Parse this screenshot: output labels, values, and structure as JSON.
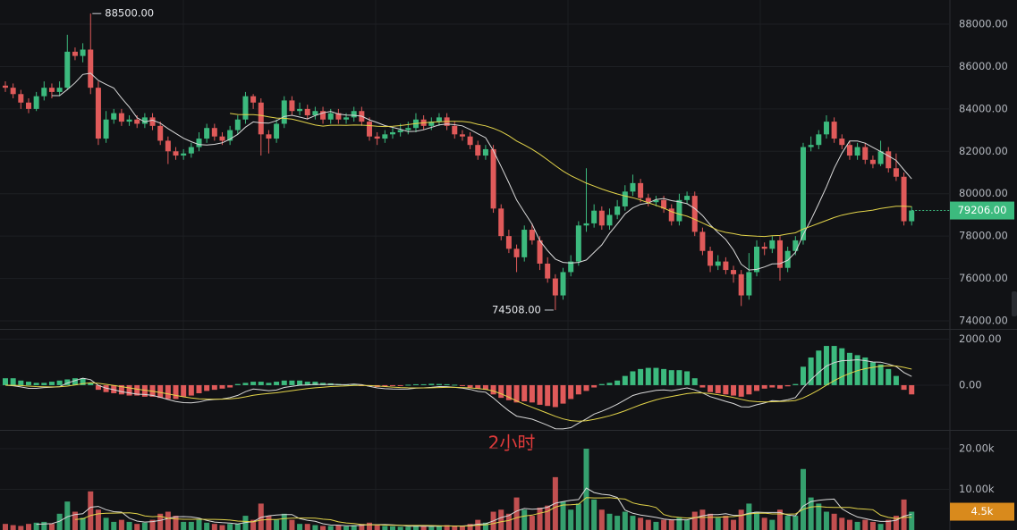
{
  "chart_data": [
    {
      "type": "candlestick",
      "open": [
        85100,
        85000,
        84700,
        84300,
        84000,
        84600,
        85000,
        84800,
        85000,
        86700,
        86500,
        86800,
        85000,
        82600,
        83500,
        83800,
        83400,
        83500,
        83300,
        83600,
        83200,
        82500,
        82000,
        81800,
        81900,
        82200,
        82600,
        83100,
        82700,
        82500,
        83000,
        83500,
        84600,
        84300,
        82800,
        82600,
        83300,
        84400,
        83900,
        84000,
        83700,
        83900,
        83500,
        83800,
        83500,
        83600,
        83900,
        83400,
        82700,
        82600,
        82800,
        82900,
        83000,
        83100,
        83500,
        83200,
        83400,
        83600,
        83200,
        82800,
        82700,
        82300,
        81800,
        82100,
        79300,
        78000,
        77400,
        77000,
        78300,
        77800,
        76700,
        76000,
        75200,
        76300,
        76800,
        78500,
        78600,
        79200,
        78500,
        79000,
        79400,
        80100,
        80500,
        79800,
        79600,
        79700,
        79300,
        78700,
        79700,
        79900,
        78200,
        77300,
        76600,
        76800,
        76400,
        76200,
        75200,
        76300,
        77500,
        77400,
        77800,
        76500,
        77300,
        77800,
        82200,
        82300,
        82800,
        83400,
        82600,
        82300,
        81800,
        82200,
        81600,
        81400,
        82000,
        81200,
        80800,
        78700
      ],
      "high": [
        85300,
        85200,
        84900,
        84500,
        84800,
        85300,
        85200,
        85300,
        87500,
        86900,
        87100,
        88500,
        85300,
        83900,
        84000,
        84000,
        83700,
        83700,
        83800,
        83800,
        83400,
        82700,
        82200,
        82100,
        82400,
        82900,
        83300,
        83300,
        82900,
        83200,
        83700,
        84800,
        84700,
        84500,
        83000,
        83500,
        84600,
        84600,
        84300,
        84200,
        84100,
        84100,
        84000,
        84000,
        83800,
        84100,
        84100,
        83600,
        82900,
        83000,
        83100,
        83300,
        83400,
        83800,
        83700,
        83600,
        83800,
        83800,
        83400,
        83000,
        82900,
        82500,
        82300,
        82300,
        79500,
        78300,
        77600,
        78500,
        78600,
        78000,
        77000,
        76200,
        76500,
        77100,
        78700,
        81200,
        79500,
        79400,
        79300,
        79700,
        80400,
        80900,
        80700,
        80000,
        79900,
        79900,
        79500,
        80000,
        80100,
        80100,
        78400,
        77500,
        77100,
        77000,
        76600,
        76400,
        77200,
        77800,
        77700,
        78000,
        78000,
        77500,
        78000,
        82400,
        82700,
        83000,
        83700,
        83600,
        82800,
        82500,
        82400,
        82400,
        81800,
        82500,
        82200,
        81900,
        81000,
        79400
      ],
      "low": [
        84800,
        84500,
        84000,
        83800,
        83900,
        84400,
        84500,
        84600,
        84900,
        86300,
        86200,
        84700,
        82300,
        82400,
        83300,
        83200,
        83200,
        83100,
        83100,
        83000,
        82300,
        81400,
        81600,
        81600,
        81700,
        82000,
        82400,
        82500,
        82300,
        82300,
        82800,
        83300,
        84000,
        81800,
        81900,
        82400,
        83100,
        83700,
        83700,
        83500,
        83500,
        83300,
        83300,
        83300,
        83300,
        83400,
        83200,
        82500,
        82300,
        82400,
        82600,
        82700,
        82800,
        82900,
        83000,
        83000,
        83200,
        83000,
        82600,
        82500,
        82100,
        81600,
        81600,
        79100,
        77800,
        77200,
        76300,
        76800,
        77600,
        76400,
        75800,
        74508,
        75000,
        76100,
        76600,
        78200,
        78400,
        78300,
        78300,
        78800,
        79200,
        79900,
        79600,
        79400,
        79400,
        79100,
        78500,
        78500,
        79500,
        78000,
        77100,
        76300,
        76400,
        76200,
        75800,
        74700,
        75000,
        76100,
        77100,
        77200,
        75900,
        76300,
        77100,
        77600,
        82000,
        82100,
        82600,
        82400,
        82100,
        81600,
        81600,
        81400,
        81200,
        81300,
        81000,
        80600,
        78500,
        78500
      ],
      "close": [
        85000,
        84700,
        84300,
        84000,
        84600,
        85000,
        84800,
        85000,
        86700,
        86500,
        86800,
        85000,
        82600,
        83500,
        83800,
        83400,
        83500,
        83300,
        83600,
        83200,
        82500,
        82000,
        81800,
        81900,
        82200,
        82600,
        83100,
        82700,
        82500,
        83000,
        83500,
        84600,
        84300,
        82800,
        82600,
        83300,
        84400,
        83900,
        84000,
        83700,
        83900,
        83500,
        83800,
        83500,
        83600,
        83900,
        83400,
        82700,
        82600,
        82800,
        82900,
        83000,
        83100,
        83500,
        83200,
        83400,
        83600,
        83200,
        82800,
        82700,
        82300,
        81800,
        82100,
        79300,
        78000,
        77400,
        77000,
        78300,
        77800,
        76700,
        76000,
        75200,
        76300,
        76800,
        78500,
        78600,
        79200,
        78500,
        79000,
        79400,
        80100,
        80500,
        79800,
        79600,
        79700,
        79300,
        78700,
        79700,
        79900,
        78200,
        77300,
        76600,
        76800,
        76400,
        76200,
        75200,
        76300,
        77500,
        77400,
        77800,
        76500,
        77300,
        77800,
        82200,
        82300,
        82800,
        83400,
        82600,
        82300,
        81800,
        82200,
        81600,
        81400,
        82000,
        81200,
        80800,
        78700,
        79206
      ],
      "ylim": [
        73620,
        89140
      ],
      "yticks": [
        {
          "value": 74000,
          "label": "74000.00"
        },
        {
          "value": 76000,
          "label": "76000.00"
        },
        {
          "value": 78000,
          "label": "78000.00"
        },
        {
          "value": 80000,
          "label": "80000.00"
        },
        {
          "value": 82000,
          "label": "82000.00"
        },
        {
          "value": 84000,
          "label": "84000.00"
        },
        {
          "value": 86000,
          "label": "86000.00"
        },
        {
          "value": 88000,
          "label": "88000.00"
        }
      ],
      "high_label": "88500.00",
      "low_label": "74508.00",
      "last_label": "79206.00",
      "up_color": "#3cba7e",
      "down_color": "#e05a5a",
      "grid": true
    },
    {
      "type": "bar",
      "title": "2小时",
      "values": [
        300,
        300,
        200,
        150,
        100,
        100,
        150,
        200,
        250,
        300,
        300,
        100,
        -200,
        -300,
        -350,
        -400,
        -450,
        -450,
        -500,
        -500,
        -550,
        -600,
        -600,
        -500,
        -450,
        -350,
        -250,
        -200,
        -150,
        -100,
        50,
        100,
        150,
        150,
        100,
        150,
        200,
        200,
        200,
        150,
        150,
        100,
        80,
        50,
        30,
        20,
        -20,
        -50,
        -80,
        -60,
        -40,
        -20,
        20,
        40,
        40,
        60,
        50,
        40,
        20,
        -30,
        -100,
        -150,
        -200,
        -400,
        -550,
        -650,
        -750,
        -700,
        -750,
        -850,
        -900,
        -950,
        -800,
        -600,
        -400,
        -250,
        -100,
        50,
        100,
        200,
        400,
        600,
        700,
        750,
        750,
        700,
        650,
        650,
        600,
        300,
        -100,
        -300,
        -350,
        -400,
        -450,
        -500,
        -400,
        -250,
        -150,
        -100,
        -150,
        -50,
        50,
        800,
        1200,
        1500,
        1700,
        1700,
        1600,
        1400,
        1300,
        1200,
        1000,
        900,
        700,
        400,
        -200,
        -400
      ],
      "ylim": [
        -1900,
        2400
      ],
      "yticks": [
        {
          "value": 0,
          "label": "0.00"
        },
        {
          "value": 2000,
          "label": "2000.00"
        }
      ]
    },
    {
      "type": "bar",
      "values": [
        1500,
        1200,
        1000,
        1500,
        1800,
        2000,
        1500,
        4000,
        7000,
        4500,
        3000,
        9500,
        5000,
        3000,
        2000,
        2500,
        2000,
        1500,
        1800,
        2500,
        4000,
        4500,
        3500,
        2000,
        2000,
        2500,
        1800,
        1500,
        1200,
        1500,
        1500,
        3500,
        2500,
        6500,
        3500,
        2500,
        4000,
        2500,
        1500,
        1500,
        1200,
        1000,
        1000,
        1200,
        900,
        1200,
        1500,
        1800,
        1200,
        1000,
        900,
        800,
        800,
        1200,
        900,
        800,
        1000,
        1200,
        1000,
        900,
        1500,
        2500,
        1800,
        4500,
        5000,
        4000,
        8000,
        5000,
        3500,
        5500,
        6000,
        13000,
        7000,
        5000,
        6500,
        20000,
        7500,
        5000,
        4000,
        3500,
        4500,
        3500,
        3000,
        2500,
        2000,
        2500,
        2500,
        3000,
        2500,
        4500,
        5000,
        4000,
        3000,
        3500,
        2500,
        5000,
        6500,
        4500,
        3000,
        2500,
        5000,
        3500,
        3500,
        15000,
        8000,
        6500,
        4500,
        4000,
        3000,
        2500,
        2000,
        2500,
        2000,
        1500,
        2500,
        3500,
        7500,
        4500
      ],
      "value_labels": {
        "117": "4.5k"
      },
      "ylim": [
        0,
        24400
      ],
      "yticks": [
        {
          "value": 10000,
          "label": "10.00k"
        },
        {
          "value": 20000,
          "label": "20.00k"
        }
      ]
    }
  ]
}
